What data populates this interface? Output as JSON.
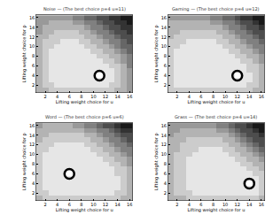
{
  "chart_data": [
    {
      "type": "heatmap",
      "title": "Noise — (The best choice p=4 u=11)",
      "x_label": "Lifting weight choice for u",
      "y_label": "Lifting weight choice for p",
      "x": [
        1,
        2,
        3,
        4,
        5,
        6,
        7,
        8,
        9,
        10,
        11,
        12,
        13,
        14,
        15,
        16
      ],
      "y": [
        1,
        2,
        3,
        4,
        5,
        6,
        7,
        8,
        9,
        10,
        11,
        12,
        13,
        14,
        15,
        16
      ],
      "z": [
        [
          3,
          3,
          2,
          2,
          2,
          2,
          2,
          2,
          2,
          2,
          2,
          2,
          2,
          3,
          3,
          4
        ],
        [
          3,
          2,
          2,
          1,
          1,
          1,
          1,
          1,
          1,
          1,
          1,
          1,
          2,
          2,
          3,
          4
        ],
        [
          3,
          2,
          1,
          1,
          1,
          1,
          1,
          1,
          1,
          1,
          1,
          1,
          1,
          2,
          3,
          4
        ],
        [
          3,
          2,
          1,
          1,
          1,
          1,
          1,
          1,
          1,
          1,
          0,
          1,
          1,
          2,
          3,
          4
        ],
        [
          3,
          2,
          1,
          1,
          1,
          1,
          1,
          1,
          1,
          1,
          1,
          1,
          1,
          2,
          3,
          4
        ],
        [
          3,
          2,
          1,
          1,
          1,
          1,
          1,
          1,
          1,
          1,
          1,
          1,
          2,
          2,
          3,
          5
        ],
        [
          3,
          2,
          1,
          1,
          1,
          1,
          1,
          1,
          1,
          1,
          1,
          2,
          2,
          3,
          4,
          5
        ],
        [
          3,
          2,
          1,
          1,
          1,
          1,
          1,
          1,
          1,
          1,
          2,
          2,
          3,
          3,
          4,
          5
        ],
        [
          3,
          2,
          1,
          1,
          1,
          1,
          1,
          1,
          1,
          2,
          2,
          3,
          3,
          4,
          5,
          6
        ],
        [
          3,
          2,
          2,
          1,
          1,
          1,
          1,
          1,
          2,
          2,
          3,
          3,
          4,
          5,
          6,
          6
        ],
        [
          3,
          2,
          2,
          2,
          1,
          1,
          1,
          2,
          2,
          3,
          3,
          4,
          5,
          5,
          6,
          7
        ],
        [
          3,
          3,
          2,
          2,
          2,
          2,
          2,
          2,
          3,
          3,
          4,
          5,
          5,
          6,
          7,
          7
        ],
        [
          4,
          3,
          3,
          2,
          2,
          2,
          2,
          3,
          3,
          4,
          5,
          5,
          6,
          7,
          7,
          8
        ],
        [
          4,
          3,
          3,
          3,
          3,
          3,
          3,
          3,
          4,
          5,
          5,
          6,
          7,
          7,
          8,
          8
        ],
        [
          4,
          4,
          3,
          3,
          3,
          3,
          4,
          4,
          5,
          5,
          6,
          7,
          7,
          8,
          8,
          9
        ],
        [
          4,
          4,
          4,
          4,
          4,
          4,
          5,
          5,
          6,
          6,
          7,
          7,
          8,
          8,
          9,
          9
        ]
      ],
      "zlim": [
        0,
        10
      ],
      "xlim": [
        0.5,
        16.5
      ],
      "ylim": [
        0.5,
        16.5
      ],
      "xticks": [
        2,
        4,
        6,
        8,
        10,
        12,
        14,
        16
      ],
      "yticks": [
        2,
        4,
        6,
        8,
        10,
        12,
        14,
        16
      ],
      "marker": "circle-open",
      "points": {
        "x": [
          11
        ],
        "y": [
          4
        ]
      }
    },
    {
      "type": "heatmap",
      "title": "Gaming — (The best choice p=4 u=12)",
      "x_label": "Lifting weight choice for u",
      "y_label": "Lifting weight choice for p",
      "x": [
        1,
        2,
        3,
        4,
        5,
        6,
        7,
        8,
        9,
        10,
        11,
        12,
        13,
        14,
        15,
        16
      ],
      "y": [
        1,
        2,
        3,
        4,
        5,
        6,
        7,
        8,
        9,
        10,
        11,
        12,
        13,
        14,
        15,
        16
      ],
      "z": [
        [
          2,
          2,
          2,
          2,
          2,
          2,
          2,
          2,
          2,
          2,
          2,
          2,
          2,
          2,
          3,
          3
        ],
        [
          2,
          1,
          1,
          1,
          1,
          1,
          1,
          1,
          1,
          1,
          1,
          1,
          1,
          2,
          2,
          3
        ],
        [
          2,
          1,
          1,
          1,
          1,
          1,
          1,
          1,
          1,
          1,
          1,
          1,
          1,
          1,
          2,
          3
        ],
        [
          2,
          1,
          1,
          1,
          1,
          1,
          1,
          1,
          1,
          1,
          1,
          0,
          1,
          1,
          2,
          3
        ],
        [
          2,
          1,
          1,
          1,
          1,
          1,
          1,
          1,
          1,
          1,
          1,
          1,
          1,
          2,
          2,
          3
        ],
        [
          2,
          1,
          1,
          1,
          1,
          1,
          1,
          1,
          1,
          1,
          1,
          1,
          1,
          2,
          2,
          3
        ],
        [
          2,
          1,
          1,
          1,
          1,
          1,
          1,
          1,
          1,
          1,
          1,
          1,
          2,
          2,
          3,
          4
        ],
        [
          2,
          1,
          1,
          1,
          1,
          1,
          1,
          1,
          1,
          1,
          1,
          2,
          2,
          3,
          3,
          4
        ],
        [
          2,
          1,
          1,
          1,
          1,
          1,
          1,
          1,
          1,
          1,
          2,
          2,
          3,
          3,
          4,
          5
        ],
        [
          2,
          2,
          1,
          1,
          1,
          1,
          1,
          1,
          1,
          2,
          2,
          3,
          3,
          4,
          5,
          5
        ],
        [
          2,
          2,
          2,
          1,
          1,
          1,
          1,
          1,
          2,
          2,
          3,
          3,
          4,
          5,
          5,
          6
        ],
        [
          3,
          2,
          2,
          2,
          2,
          2,
          2,
          2,
          2,
          3,
          3,
          4,
          5,
          5,
          6,
          7
        ],
        [
          3,
          3,
          2,
          2,
          2,
          2,
          2,
          2,
          3,
          3,
          4,
          5,
          5,
          6,
          7,
          7
        ],
        [
          3,
          3,
          3,
          3,
          3,
          3,
          3,
          3,
          3,
          4,
          5,
          5,
          6,
          7,
          7,
          8
        ],
        [
          3,
          3,
          3,
          3,
          3,
          3,
          3,
          4,
          4,
          5,
          5,
          6,
          7,
          7,
          8,
          9
        ],
        [
          4,
          4,
          4,
          4,
          4,
          4,
          4,
          5,
          5,
          6,
          6,
          7,
          8,
          8,
          9,
          9
        ]
      ],
      "zlim": [
        0,
        10
      ],
      "xlim": [
        0.5,
        16.5
      ],
      "ylim": [
        0.5,
        16.5
      ],
      "xticks": [
        2,
        4,
        6,
        8,
        10,
        12,
        14,
        16
      ],
      "yticks": [
        2,
        4,
        6,
        8,
        10,
        12,
        14,
        16
      ],
      "marker": "circle-open",
      "points": {
        "x": [
          12
        ],
        "y": [
          4
        ]
      }
    },
    {
      "type": "heatmap",
      "title": "Word — (The best choice p=6 u=6)",
      "x_label": "Lifting weight choice for u",
      "y_label": "Lifting weight choice for p",
      "x": [
        1,
        2,
        3,
        4,
        5,
        6,
        7,
        8,
        9,
        10,
        11,
        12,
        13,
        14,
        15,
        16
      ],
      "y": [
        1,
        2,
        3,
        4,
        5,
        6,
        7,
        8,
        9,
        10,
        11,
        12,
        13,
        14,
        15,
        16
      ],
      "z": [
        [
          3,
          2,
          2,
          2,
          2,
          2,
          2,
          2,
          2,
          2,
          2,
          2,
          2,
          2,
          3,
          3
        ],
        [
          2,
          2,
          1,
          1,
          1,
          1,
          1,
          1,
          1,
          1,
          1,
          1,
          1,
          2,
          2,
          3
        ],
        [
          2,
          1,
          1,
          1,
          1,
          1,
          1,
          1,
          1,
          1,
          1,
          1,
          1,
          1,
          2,
          3
        ],
        [
          2,
          1,
          1,
          1,
          1,
          1,
          1,
          1,
          1,
          1,
          1,
          1,
          1,
          1,
          2,
          3
        ],
        [
          2,
          1,
          1,
          1,
          1,
          1,
          1,
          1,
          1,
          1,
          1,
          1,
          1,
          1,
          2,
          3
        ],
        [
          2,
          1,
          1,
          1,
          1,
          0,
          1,
          1,
          1,
          1,
          1,
          1,
          1,
          2,
          2,
          3
        ],
        [
          2,
          1,
          1,
          1,
          1,
          1,
          1,
          1,
          1,
          1,
          1,
          1,
          1,
          2,
          2,
          3
        ],
        [
          2,
          1,
          1,
          1,
          1,
          1,
          1,
          1,
          1,
          1,
          1,
          1,
          2,
          2,
          3,
          4
        ],
        [
          2,
          1,
          1,
          1,
          1,
          1,
          1,
          1,
          1,
          1,
          1,
          2,
          2,
          3,
          3,
          4
        ],
        [
          2,
          1,
          1,
          1,
          1,
          1,
          1,
          1,
          1,
          1,
          2,
          2,
          3,
          3,
          4,
          5
        ],
        [
          2,
          2,
          1,
          1,
          1,
          1,
          1,
          1,
          1,
          2,
          2,
          3,
          3,
          4,
          5,
          5
        ],
        [
          2,
          2,
          2,
          1,
          1,
          1,
          1,
          1,
          2,
          2,
          3,
          3,
          4,
          5,
          5,
          6
        ],
        [
          3,
          2,
          2,
          2,
          2,
          2,
          2,
          2,
          2,
          3,
          3,
          4,
          5,
          5,
          6,
          7
        ],
        [
          3,
          3,
          2,
          2,
          2,
          2,
          2,
          2,
          3,
          3,
          4,
          5,
          5,
          6,
          7,
          7
        ],
        [
          3,
          3,
          3,
          3,
          3,
          3,
          3,
          3,
          4,
          4,
          5,
          5,
          6,
          7,
          8,
          8
        ],
        [
          4,
          3,
          3,
          3,
          3,
          3,
          4,
          4,
          5,
          5,
          6,
          7,
          7,
          8,
          9,
          9
        ]
      ],
      "zlim": [
        0,
        10
      ],
      "xlim": [
        0.5,
        16.5
      ],
      "ylim": [
        0.5,
        16.5
      ],
      "xticks": [
        2,
        4,
        6,
        8,
        10,
        12,
        14,
        16
      ],
      "yticks": [
        2,
        4,
        6,
        8,
        10,
        12,
        14,
        16
      ],
      "marker": "circle-open",
      "points": {
        "x": [
          6
        ],
        "y": [
          6
        ]
      }
    },
    {
      "type": "heatmap",
      "title": "Grass — (The best choice p=4 u=14)",
      "x_label": "Lifting weight choice for u",
      "y_label": "Lifting weight choice for p",
      "x": [
        1,
        2,
        3,
        4,
        5,
        6,
        7,
        8,
        9,
        10,
        11,
        12,
        13,
        14,
        15,
        16
      ],
      "y": [
        1,
        2,
        3,
        4,
        5,
        6,
        7,
        8,
        9,
        10,
        11,
        12,
        13,
        14,
        15,
        16
      ],
      "z": [
        [
          3,
          3,
          3,
          2,
          2,
          2,
          2,
          2,
          2,
          2,
          2,
          2,
          2,
          2,
          2,
          3
        ],
        [
          3,
          2,
          2,
          2,
          1,
          1,
          1,
          1,
          1,
          1,
          1,
          1,
          1,
          1,
          1,
          2
        ],
        [
          3,
          2,
          2,
          1,
          1,
          1,
          1,
          1,
          1,
          1,
          1,
          1,
          1,
          1,
          1,
          2
        ],
        [
          3,
          2,
          2,
          1,
          1,
          1,
          1,
          1,
          1,
          1,
          1,
          1,
          1,
          0,
          1,
          2
        ],
        [
          3,
          2,
          2,
          1,
          1,
          1,
          1,
          1,
          1,
          1,
          1,
          1,
          1,
          1,
          1,
          2
        ],
        [
          3,
          2,
          2,
          1,
          1,
          1,
          1,
          1,
          1,
          1,
          1,
          1,
          1,
          1,
          2,
          2
        ],
        [
          3,
          2,
          2,
          1,
          1,
          1,
          1,
          1,
          1,
          1,
          1,
          1,
          1,
          2,
          2,
          3
        ],
        [
          3,
          2,
          2,
          1,
          1,
          1,
          1,
          1,
          1,
          1,
          1,
          1,
          2,
          2,
          3,
          3
        ],
        [
          3,
          2,
          2,
          1,
          1,
          1,
          1,
          1,
          1,
          1,
          1,
          2,
          2,
          3,
          3,
          4
        ],
        [
          3,
          2,
          2,
          2,
          1,
          1,
          1,
          1,
          1,
          1,
          2,
          2,
          3,
          3,
          4,
          5
        ],
        [
          3,
          3,
          2,
          2,
          2,
          1,
          1,
          1,
          1,
          2,
          2,
          3,
          3,
          4,
          5,
          6
        ],
        [
          3,
          3,
          2,
          2,
          2,
          2,
          2,
          2,
          2,
          2,
          3,
          3,
          4,
          5,
          6,
          7
        ],
        [
          3,
          3,
          3,
          2,
          2,
          2,
          2,
          2,
          2,
          3,
          3,
          4,
          5,
          6,
          7,
          7
        ],
        [
          4,
          3,
          3,
          3,
          3,
          3,
          3,
          3,
          3,
          3,
          4,
          5,
          6,
          7,
          7,
          8
        ],
        [
          4,
          4,
          3,
          3,
          3,
          3,
          3,
          3,
          4,
          4,
          5,
          6,
          7,
          7,
          8,
          9
        ],
        [
          4,
          4,
          4,
          4,
          4,
          4,
          4,
          4,
          5,
          5,
          6,
          7,
          7,
          8,
          9,
          9
        ]
      ],
      "zlim": [
        0,
        10
      ],
      "xlim": [
        0.5,
        16.5
      ],
      "ylim": [
        0.5,
        16.5
      ],
      "xticks": [
        2,
        4,
        6,
        8,
        10,
        12,
        14,
        16
      ],
      "yticks": [
        2,
        4,
        6,
        8,
        10,
        12,
        14,
        16
      ],
      "marker": "circle-open",
      "points": {
        "x": [
          14
        ],
        "y": [
          4
        ]
      }
    }
  ]
}
